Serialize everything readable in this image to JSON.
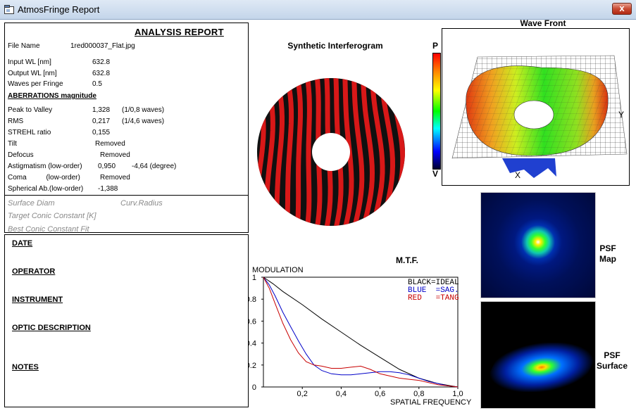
{
  "window": {
    "title": "AtmosFringe  Report",
    "close_label": "x"
  },
  "report": {
    "title": "ANALYSIS  REPORT",
    "file_name_label": "File Name",
    "file_name": "1red000037_Flat.jpg",
    "input_wl_label": "Input  WL [nm]",
    "input_wl": "632.8",
    "output_wl_label": "Output WL [nm]",
    "output_wl": "632.8",
    "waves_per_fringe_label": "Waves per Fringe",
    "waves_per_fringe": "0.5",
    "aberr_header": "ABERRATIONS magnitude",
    "ptv_label": "Peak to Valley",
    "ptv_value": "1,328",
    "ptv_waves": "(1/0,8 waves)",
    "rms_label": "RMS",
    "rms_value": "0,217",
    "rms_waves": "(1/4,6 waves)",
    "strehl_label": "STREHL ratio",
    "strehl_value": "0,155",
    "tilt_label": "Tilt",
    "tilt_value": "Removed",
    "defocus_label": "Defocus",
    "defocus_value": "Removed",
    "astig_label": "Astigmatism  (low-order)",
    "astig_value": "0,950",
    "astig_angle": "-4,64  (degree)",
    "coma_label": "Coma          (low-order)",
    "coma_value": "Removed",
    "spherical_label": "Spherical Ab.(low-order)",
    "spherical_value": "-1,388",
    "surface_diam": "Surface Diam",
    "curv_radius": "Curv.Radius",
    "target_conic": "Target Conic Constant [K]",
    "best_conic": "Best Conic Constant Fit"
  },
  "notes": {
    "date": "DATE",
    "operator": "OPERATOR",
    "instrument": "INSTRUMENT",
    "optic_description": "OPTIC DESCRIPTION",
    "notes": "NOTES"
  },
  "interferogram": {
    "title": "Synthetic Interferogram"
  },
  "colorbar": {
    "top": "P",
    "bottom": "V"
  },
  "wavefront": {
    "title": "Wave Front",
    "y_label": "Y",
    "x_label": "X"
  },
  "psf": {
    "map_label_1": "PSF",
    "map_label_2": "Map",
    "surface_label_1": "PSF",
    "surface_label_2": "Surface"
  },
  "mtf": {
    "title": "M.T.F.",
    "ylabel": "MODULATION",
    "xlabel": "SPATIAL FREQUENCY",
    "legend_black": "BLACK=IDEAL",
    "legend_blue": "BLUE  =SAG.",
    "legend_red": "RED   =TANG",
    "colors": {
      "ideal": "#000000",
      "sag": "#0000c8",
      "tang": "#c80000"
    }
  },
  "chart_data": {
    "type": "line",
    "title": "M.T.F.",
    "xlabel": "SPATIAL FREQUENCY",
    "ylabel": "MODULATION",
    "xlim": [
      0,
      1
    ],
    "ylim": [
      0,
      1
    ],
    "x_ticks": [
      "0,2",
      "0,4",
      "0,6",
      "0,8",
      "1,0"
    ],
    "y_ticks": [
      "0",
      "0.2",
      "0.4",
      "0.6",
      "0.8",
      "1"
    ],
    "legend": "top-right",
    "series": [
      {
        "name": "BLACK=IDEAL",
        "color": "#000000",
        "x": [
          0,
          0.05,
          0.1,
          0.2,
          0.3,
          0.4,
          0.5,
          0.6,
          0.7,
          0.8,
          0.9,
          1.0
        ],
        "y": [
          1.0,
          0.94,
          0.87,
          0.75,
          0.62,
          0.5,
          0.38,
          0.27,
          0.16,
          0.08,
          0.03,
          0.0
        ]
      },
      {
        "name": "BLUE  =SAG.",
        "color": "#0000c8",
        "x": [
          0,
          0.03,
          0.06,
          0.1,
          0.14,
          0.18,
          0.22,
          0.26,
          0.3,
          0.35,
          0.4,
          0.45,
          0.5,
          0.55,
          0.6,
          0.65,
          0.7,
          0.75,
          0.8,
          0.85,
          0.9,
          0.95,
          1.0
        ],
        "y": [
          1.0,
          0.93,
          0.83,
          0.68,
          0.55,
          0.42,
          0.3,
          0.2,
          0.15,
          0.12,
          0.11,
          0.11,
          0.12,
          0.13,
          0.14,
          0.14,
          0.13,
          0.11,
          0.08,
          0.05,
          0.03,
          0.01,
          0.0
        ]
      },
      {
        "name": "RED   =TANG",
        "color": "#c80000",
        "x": [
          0,
          0.03,
          0.06,
          0.1,
          0.14,
          0.18,
          0.22,
          0.26,
          0.3,
          0.35,
          0.4,
          0.45,
          0.5,
          0.55,
          0.6,
          0.65,
          0.7,
          0.75,
          0.8,
          0.85,
          0.9,
          0.95,
          1.0
        ],
        "y": [
          1.0,
          0.9,
          0.76,
          0.58,
          0.43,
          0.31,
          0.23,
          0.2,
          0.19,
          0.17,
          0.17,
          0.18,
          0.19,
          0.16,
          0.12,
          0.1,
          0.08,
          0.07,
          0.06,
          0.04,
          0.02,
          0.01,
          0.0
        ]
      }
    ]
  }
}
